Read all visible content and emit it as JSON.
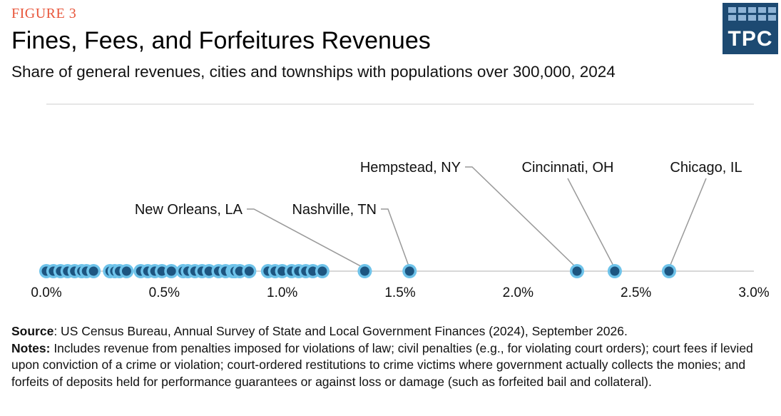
{
  "header": {
    "figure_label": "FIGURE 3",
    "title": "Fines, Fees, and Forfeitures Revenues",
    "subtitle": "Share of general revenues, cities and townships with populations over 300,000, 2024",
    "logo_text": "TPC"
  },
  "colors": {
    "figure_label": "#e8553a",
    "logo_bg": "#1d4a72",
    "dot_fill": "#1d5580",
    "dot_ring": "#6ec3ea",
    "axis": "#cccccc",
    "leader": "#999999"
  },
  "chart_data": {
    "type": "scatter",
    "title": "Fines, Fees, and Forfeitures Revenues",
    "xlabel": "",
    "ylabel": "",
    "xlim": [
      0,
      3.0
    ],
    "x_unit": "%",
    "x_ticks": [
      "0.0%",
      "0.5%",
      "1.0%",
      "1.5%",
      "2.0%",
      "2.5%",
      "3.0%"
    ],
    "grid": false,
    "values": [
      0.0,
      0.03,
      0.06,
      0.09,
      0.12,
      0.15,
      0.17,
      0.2,
      0.27,
      0.29,
      0.31,
      0.34,
      0.4,
      0.43,
      0.46,
      0.49,
      0.53,
      0.58,
      0.6,
      0.63,
      0.66,
      0.69,
      0.73,
      0.76,
      0.79,
      0.8,
      0.82,
      0.86,
      0.94,
      0.97,
      1.0,
      1.04,
      1.07,
      1.1,
      1.13,
      1.17,
      1.35,
      1.54,
      2.25,
      2.41,
      2.64
    ],
    "annotations": [
      {
        "label": "New Orleans, LA",
        "x": 1.35
      },
      {
        "label": "Nashville, TN",
        "x": 1.54
      },
      {
        "label": "Hempstead, NY",
        "x": 2.25
      },
      {
        "label": "Cincinnati, OH",
        "x": 2.41
      },
      {
        "label": "Chicago, IL",
        "x": 2.64
      }
    ]
  },
  "footer": {
    "source_label": "Source",
    "source_text": ": US Census Bureau, Annual Survey of State and Local Government Finances (2024), September 2026.",
    "notes_label": "Notes:",
    "notes_text": " Includes revenue from penalties imposed for violations of law; civil penalties (e.g., for violating court orders); court fees if levied upon conviction of a crime or violation; court-ordered restitutions to crime victims where government actually collects the monies; and forfeits of deposits held for performance guarantees or against loss or damage (such as forfeited bail and collateral)."
  }
}
